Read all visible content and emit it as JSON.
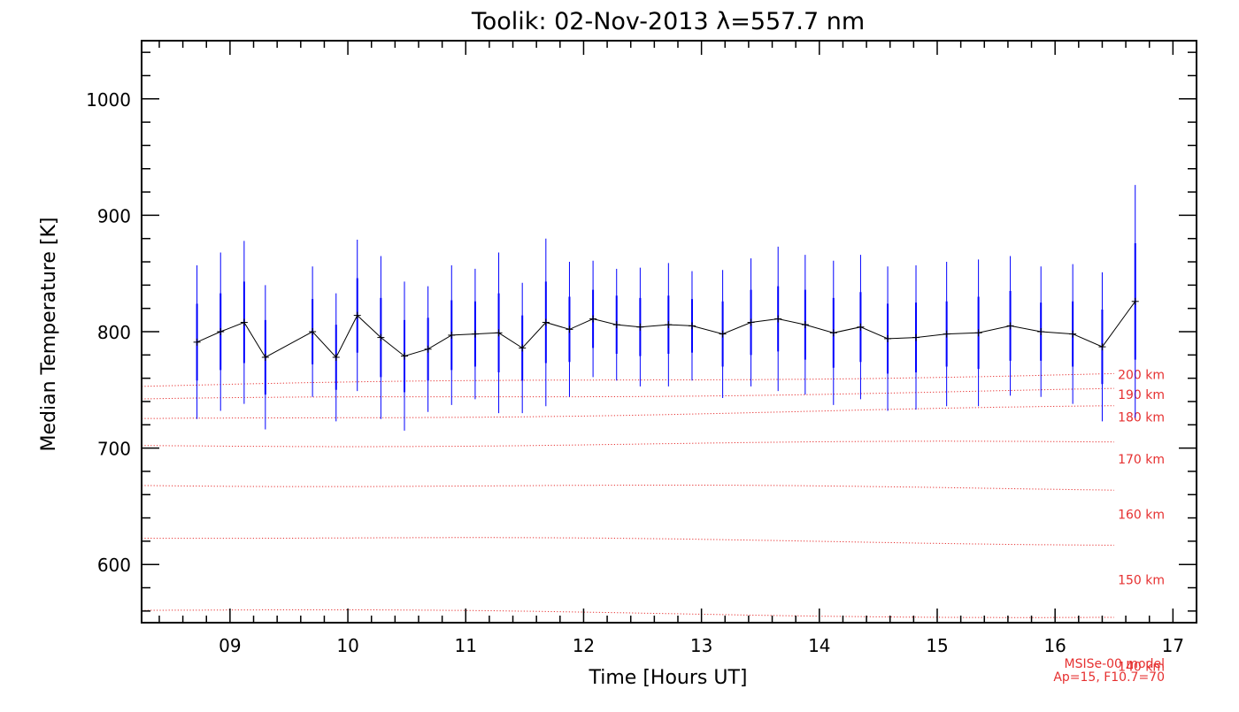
{
  "chart_data": {
    "type": "line",
    "title": "Toolik: 02-Nov-2013 λ=557.7 nm",
    "xlabel": "Time [Hours UT]",
    "ylabel": "Median Temperature [K]",
    "xlim": [
      8.25,
      17.2
    ],
    "ylim": [
      550,
      1050
    ],
    "xticks": [
      9,
      10,
      11,
      12,
      13,
      14,
      15,
      16,
      17
    ],
    "xtick_labels": [
      "09",
      "10",
      "11",
      "12",
      "13",
      "14",
      "15",
      "16",
      "17"
    ],
    "yticks": [
      600,
      700,
      800,
      900,
      1000
    ],
    "ytick_labels": [
      "600",
      "700",
      "800",
      "900",
      "1000"
    ],
    "grid": false,
    "series": [
      {
        "name": "",
        "color": "#000000",
        "error_color": "#0000ff",
        "x": [
          8.72,
          8.92,
          9.12,
          9.3,
          9.7,
          9.9,
          10.08,
          10.28,
          10.48,
          10.68,
          10.88,
          11.08,
          11.28,
          11.48,
          11.68,
          11.88,
          12.08,
          12.28,
          12.48,
          12.72,
          12.92,
          13.18,
          13.42,
          13.65,
          13.88,
          14.12,
          14.35,
          14.58,
          14.82,
          15.08,
          15.35,
          15.62,
          15.88,
          16.15,
          16.4,
          16.68
        ],
        "y": [
          791,
          800,
          808,
          778,
          800,
          778,
          814,
          795,
          779,
          785,
          797,
          798,
          799,
          786,
          808,
          802,
          811,
          806,
          804,
          806,
          805,
          798,
          808,
          811,
          806,
          799,
          804,
          794,
          795,
          798,
          799,
          805,
          800,
          798,
          787,
          826
        ],
        "err_inner": [
          33,
          33,
          35,
          32,
          28,
          28,
          32,
          34,
          31,
          27,
          30,
          28,
          34,
          28,
          35,
          28,
          25,
          25,
          25,
          25,
          23,
          28,
          28,
          28,
          30,
          30,
          30,
          30,
          30,
          28,
          31,
          30,
          25,
          28,
          32,
          50
        ],
        "err_outer": [
          66,
          68,
          70,
          62,
          56,
          55,
          65,
          70,
          64,
          54,
          60,
          56,
          69,
          56,
          72,
          58,
          50,
          48,
          51,
          53,
          47,
          55,
          55,
          62,
          60,
          62,
          62,
          62,
          62,
          62,
          63,
          60,
          56,
          60,
          64,
          100
        ]
      }
    ],
    "model_curves": [
      {
        "label": "200 km",
        "y_start": 753,
        "y_end": 764
      },
      {
        "label": "190 km",
        "y_start": 741,
        "y_end": 750
      },
      {
        "label": "180 km",
        "y_start": 724,
        "y_end": 735
      },
      {
        "label": "170 km",
        "y_start": 702,
        "y_end": 705
      },
      {
        "label": "160 km",
        "y_start": 669,
        "y_end": 665
      },
      {
        "label": "150 km",
        "y_start": 624,
        "y_end": 618
      },
      {
        "label": "140 km",
        "y_start": 561,
        "y_end": 555
      }
    ],
    "model_color": "#e63030",
    "model_note": [
      "MSISe-00 model",
      "Ap=15, F10.7=70"
    ]
  }
}
